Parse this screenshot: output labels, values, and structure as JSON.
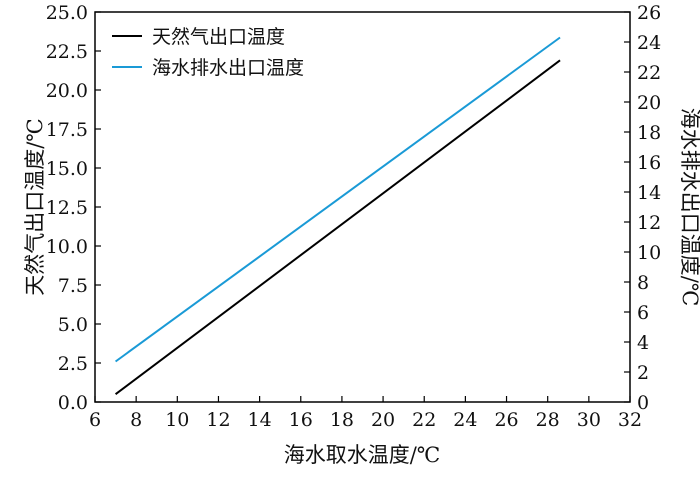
{
  "chart_data": {
    "type": "line",
    "title": "",
    "xlabel": "海水取水温度/℃",
    "ylabel_left": "天然气出口温度/℃",
    "ylabel_right": "海水排水出口温度/℃",
    "xlim": [
      6,
      32
    ],
    "ylim_left": [
      0,
      25
    ],
    "ylim_right": [
      0,
      26
    ],
    "x_ticks": [
      "6",
      "8",
      "10",
      "12",
      "14",
      "16",
      "18",
      "20",
      "22",
      "24",
      "26",
      "28",
      "30",
      "32"
    ],
    "y_left_ticks": [
      "0.0",
      "2.5",
      "5.0",
      "7.5",
      "10.0",
      "12.5",
      "15.0",
      "17.5",
      "20.0",
      "22.5",
      "25.0"
    ],
    "y_right_ticks": [
      "0",
      "2",
      "4",
      "6",
      "8",
      "10",
      "12",
      "14",
      "16",
      "18",
      "20",
      "22",
      "24",
      "26"
    ],
    "grid": false,
    "legend_position": "top-left",
    "series": [
      {
        "name": "天然气出口温度",
        "axis": "left",
        "color": "#000000",
        "x": [
          7,
          28.6
        ],
        "y": [
          0.5,
          21.9
        ]
      },
      {
        "name": "海水排水出口温度",
        "axis": "right",
        "color": "#1a9ad6",
        "x": [
          7,
          28.6
        ],
        "y": [
          2.7,
          24.3
        ]
      }
    ]
  }
}
